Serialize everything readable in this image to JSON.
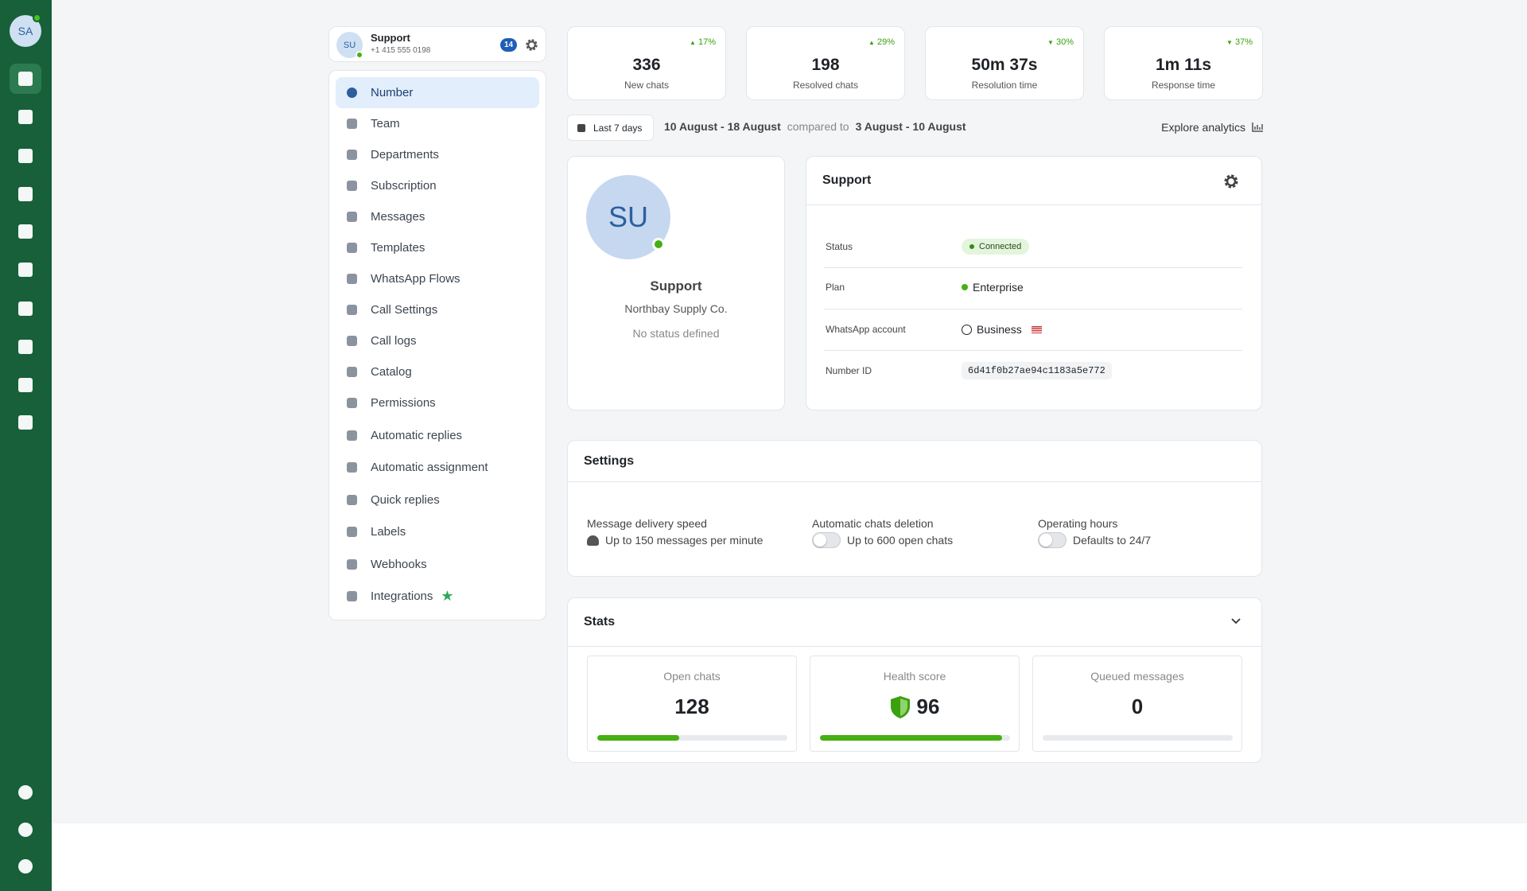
{
  "sidebar": {
    "avatar": "SA"
  },
  "account": {
    "avatar": "SU",
    "name": "Support",
    "phone": "+1 415 555 0198",
    "badge": "14"
  },
  "menu": [
    "Number",
    "Team",
    "Departments",
    "Subscription",
    "Messages",
    "Templates",
    "WhatsApp Flows",
    "Call Settings",
    "Call logs",
    "Catalog",
    "Permissions",
    "Automatic replies",
    "Automatic assignment",
    "Quick replies",
    "Labels",
    "Webhooks",
    "Integrations"
  ],
  "metrics": [
    {
      "value": "336",
      "label": "New chats",
      "change": "17%",
      "direction": "up"
    },
    {
      "value": "198",
      "label": "Resolved chats",
      "change": "29%",
      "direction": "up"
    },
    {
      "value": "50m 37s",
      "label": "Resolution time",
      "change": "30%",
      "direction": "down"
    },
    {
      "value": "1m 11s",
      "label": "Response time",
      "change": "37%",
      "direction": "down"
    }
  ],
  "range": {
    "button": "Last 7 days",
    "current": "10 August - 18 August",
    "compared": "compared to",
    "previous": "3 August - 10 August",
    "explore": "Explore analytics"
  },
  "profile": {
    "avatar": "SU",
    "name": "Support",
    "company": "Northbay Supply Co.",
    "status": "No status defined"
  },
  "details": {
    "title": "Support",
    "rows": [
      {
        "label": "Status",
        "value": "Connected"
      },
      {
        "label": "Plan",
        "value": "Enterprise"
      },
      {
        "label": "WhatsApp account",
        "value": "Business"
      },
      {
        "label": "Number ID",
        "value": "6d41f0b27ae94c1183a5e772"
      }
    ]
  },
  "settings": {
    "title": "Settings",
    "items": [
      {
        "label": "Message delivery speed",
        "value": "Up to 150 messages per minute"
      },
      {
        "label": "Automatic chats deletion",
        "value": "Up to 600 open chats"
      },
      {
        "label": "Operating hours",
        "value": "Defaults to 24/7"
      }
    ]
  },
  "stats": {
    "title": "Stats",
    "items": [
      {
        "label": "Open chats",
        "value": 128,
        "progress": 43
      },
      {
        "label": "Health score",
        "value": 96,
        "progress": 96
      },
      {
        "label": "Queued messages",
        "value": 0,
        "progress": 0
      }
    ]
  }
}
